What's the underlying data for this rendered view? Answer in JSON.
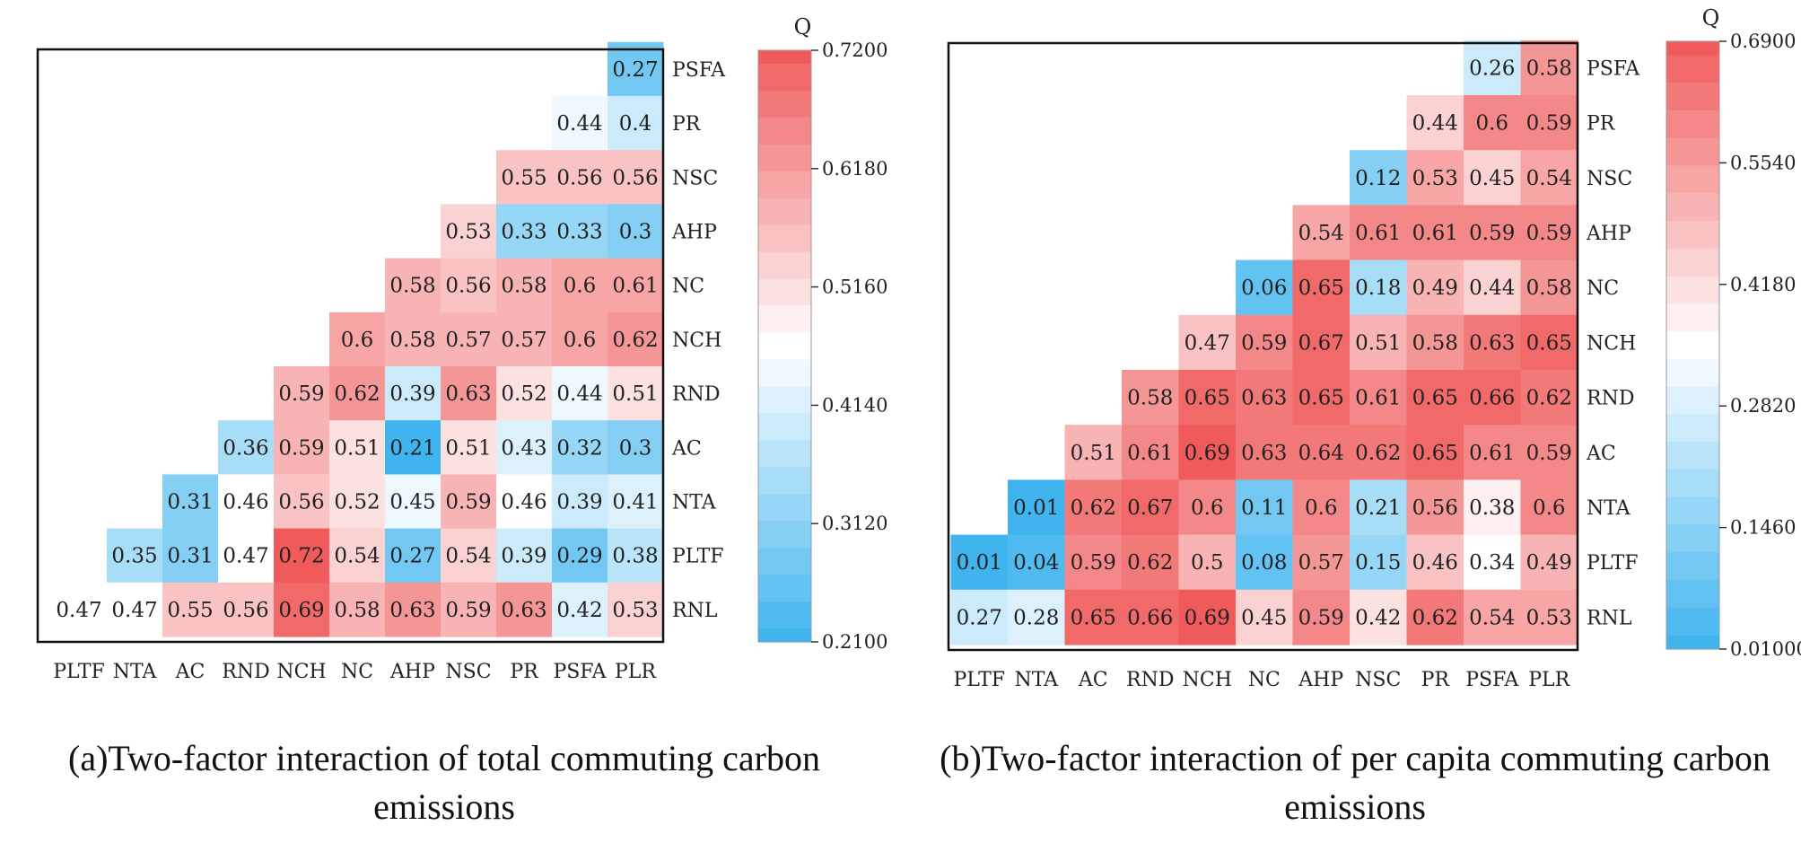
{
  "chart_data": [
    {
      "type": "heatmap",
      "caption": "(a)Two-factor interaction of total commuting carbon emissions",
      "x_labels": [
        "PLTF",
        "NTA",
        "AC",
        "RND",
        "NCH",
        "NC",
        "AHP",
        "NSC",
        "PR",
        "PSFA",
        "PLR"
      ],
      "y_labels": [
        "PSFA",
        "PR",
        "NSC",
        "AHP",
        "NC",
        "NCH",
        "RND",
        "AC",
        "NTA",
        "PLTF",
        "RNL"
      ],
      "matrix": [
        [
          null,
          null,
          null,
          null,
          null,
          null,
          null,
          null,
          null,
          null,
          0.27
        ],
        [
          null,
          null,
          null,
          null,
          null,
          null,
          null,
          null,
          null,
          0.44,
          0.4
        ],
        [
          null,
          null,
          null,
          null,
          null,
          null,
          null,
          null,
          0.55,
          0.56,
          0.56
        ],
        [
          null,
          null,
          null,
          null,
          null,
          null,
          null,
          0.53,
          0.33,
          0.33,
          0.3
        ],
        [
          null,
          null,
          null,
          null,
          null,
          null,
          0.58,
          0.56,
          0.58,
          0.6,
          0.61
        ],
        [
          null,
          null,
          null,
          null,
          null,
          0.6,
          0.58,
          0.57,
          0.57,
          0.6,
          0.62
        ],
        [
          null,
          null,
          null,
          null,
          0.59,
          0.62,
          0.39,
          0.63,
          0.52,
          0.44,
          0.51
        ],
        [
          null,
          null,
          null,
          0.36,
          0.59,
          0.51,
          0.21,
          0.51,
          0.43,
          0.32,
          0.3
        ],
        [
          null,
          null,
          0.31,
          0.46,
          0.56,
          0.52,
          0.45,
          0.59,
          0.46,
          0.39,
          0.41
        ],
        [
          null,
          0.35,
          0.31,
          0.47,
          0.72,
          0.54,
          0.27,
          0.54,
          0.39,
          0.29,
          0.38
        ],
        [
          0.47,
          0.47,
          0.55,
          0.56,
          0.69,
          0.58,
          0.63,
          0.59,
          0.63,
          0.42,
          0.53
        ]
      ],
      "colorbar": {
        "title": "Q",
        "min": 0.21,
        "max": 0.72,
        "ticks": [
          "0.7200",
          "0.6180",
          "0.5160",
          "0.4140",
          "0.3120",
          "0.2100"
        ],
        "tick_values": [
          0.72,
          0.618,
          0.516,
          0.414,
          0.312,
          0.21
        ]
      }
    },
    {
      "type": "heatmap",
      "caption": "(b)Two-factor interaction of per capita commuting carbon emissions",
      "x_labels": [
        "PLTF",
        "NTA",
        "AC",
        "RND",
        "NCH",
        "NC",
        "AHP",
        "NSC",
        "PR",
        "PSFA",
        "PLR"
      ],
      "y_labels": [
        "PSFA",
        "PR",
        "NSC",
        "AHP",
        "NC",
        "NCH",
        "RND",
        "AC",
        "NTA",
        "PLTF",
        "RNL"
      ],
      "matrix": [
        [
          null,
          null,
          null,
          null,
          null,
          null,
          null,
          null,
          null,
          0.26,
          0.58
        ],
        [
          null,
          null,
          null,
          null,
          null,
          null,
          null,
          null,
          0.44,
          0.6,
          0.59
        ],
        [
          null,
          null,
          null,
          null,
          null,
          null,
          null,
          0.12,
          0.53,
          0.45,
          0.54
        ],
        [
          null,
          null,
          null,
          null,
          null,
          null,
          0.54,
          0.61,
          0.61,
          0.59,
          0.59
        ],
        [
          null,
          null,
          null,
          null,
          null,
          0.06,
          0.65,
          0.18,
          0.49,
          0.44,
          0.58
        ],
        [
          null,
          null,
          null,
          null,
          0.47,
          0.59,
          0.67,
          0.51,
          0.58,
          0.63,
          0.65
        ],
        [
          null,
          null,
          null,
          0.58,
          0.65,
          0.63,
          0.65,
          0.61,
          0.65,
          0.66,
          0.62
        ],
        [
          null,
          null,
          0.51,
          0.61,
          0.69,
          0.63,
          0.64,
          0.62,
          0.65,
          0.61,
          0.59
        ],
        [
          null,
          0.01,
          0.62,
          0.67,
          0.6,
          0.11,
          0.6,
          0.21,
          0.56,
          0.38,
          0.6
        ],
        [
          0.01,
          0.04,
          0.59,
          0.62,
          0.5,
          0.08,
          0.57,
          0.15,
          0.46,
          0.34,
          0.49
        ],
        [
          0.27,
          0.28,
          0.65,
          0.66,
          0.69,
          0.45,
          0.59,
          0.42,
          0.62,
          0.54,
          0.53
        ]
      ],
      "colorbar": {
        "title": "Q",
        "min": 0.01,
        "max": 0.69,
        "ticks": [
          "0.6900",
          "0.5540",
          "0.4180",
          "0.2820",
          "0.1460",
          "0.01000"
        ],
        "tick_values": [
          0.69,
          0.554,
          0.418,
          0.282,
          0.146,
          0.01
        ]
      }
    }
  ],
  "colors": {
    "low": "#3fb4ef",
    "mid": "#ffffff",
    "high": "#f05a5a"
  }
}
